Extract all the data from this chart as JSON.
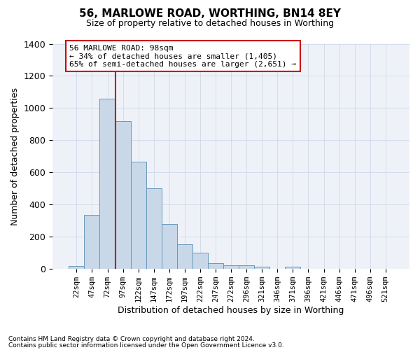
{
  "title": "56, MARLOWE ROAD, WORTHING, BN14 8EY",
  "subtitle": "Size of property relative to detached houses in Worthing",
  "xlabel": "Distribution of detached houses by size in Worthing",
  "ylabel": "Number of detached properties",
  "footnote1": "Contains HM Land Registry data © Crown copyright and database right 2024.",
  "footnote2": "Contains public sector information licensed under the Open Government Licence v3.0.",
  "bar_labels": [
    "22sqm",
    "47sqm",
    "72sqm",
    "97sqm",
    "122sqm",
    "147sqm",
    "172sqm",
    "197sqm",
    "222sqm",
    "247sqm",
    "272sqm",
    "296sqm",
    "321sqm",
    "346sqm",
    "371sqm",
    "396sqm",
    "421sqm",
    "446sqm",
    "471sqm",
    "496sqm",
    "521sqm"
  ],
  "bar_values": [
    20,
    335,
    1060,
    920,
    665,
    500,
    280,
    155,
    100,
    35,
    22,
    22,
    15,
    0,
    12,
    0,
    0,
    0,
    0,
    0,
    0
  ],
  "bar_color": "#c8d8e8",
  "bar_edge_color": "#6699bb",
  "grid_color": "#d0d8e8",
  "bg_color": "#eef2f8",
  "annotation_text_line1": "56 MARLOWE ROAD: 98sqm",
  "annotation_text_line2": "← 34% of detached houses are smaller (1,405)",
  "annotation_text_line3": "65% of semi-detached houses are larger (2,651) →",
  "ylim": [
    0,
    1400
  ],
  "yticks": [
    0,
    200,
    400,
    600,
    800,
    1000,
    1200,
    1400
  ],
  "red_line_color": "#cc0000",
  "annotation_border_color": "#cc0000",
  "bar_width": 1.0,
  "red_line_bar_index": 3
}
